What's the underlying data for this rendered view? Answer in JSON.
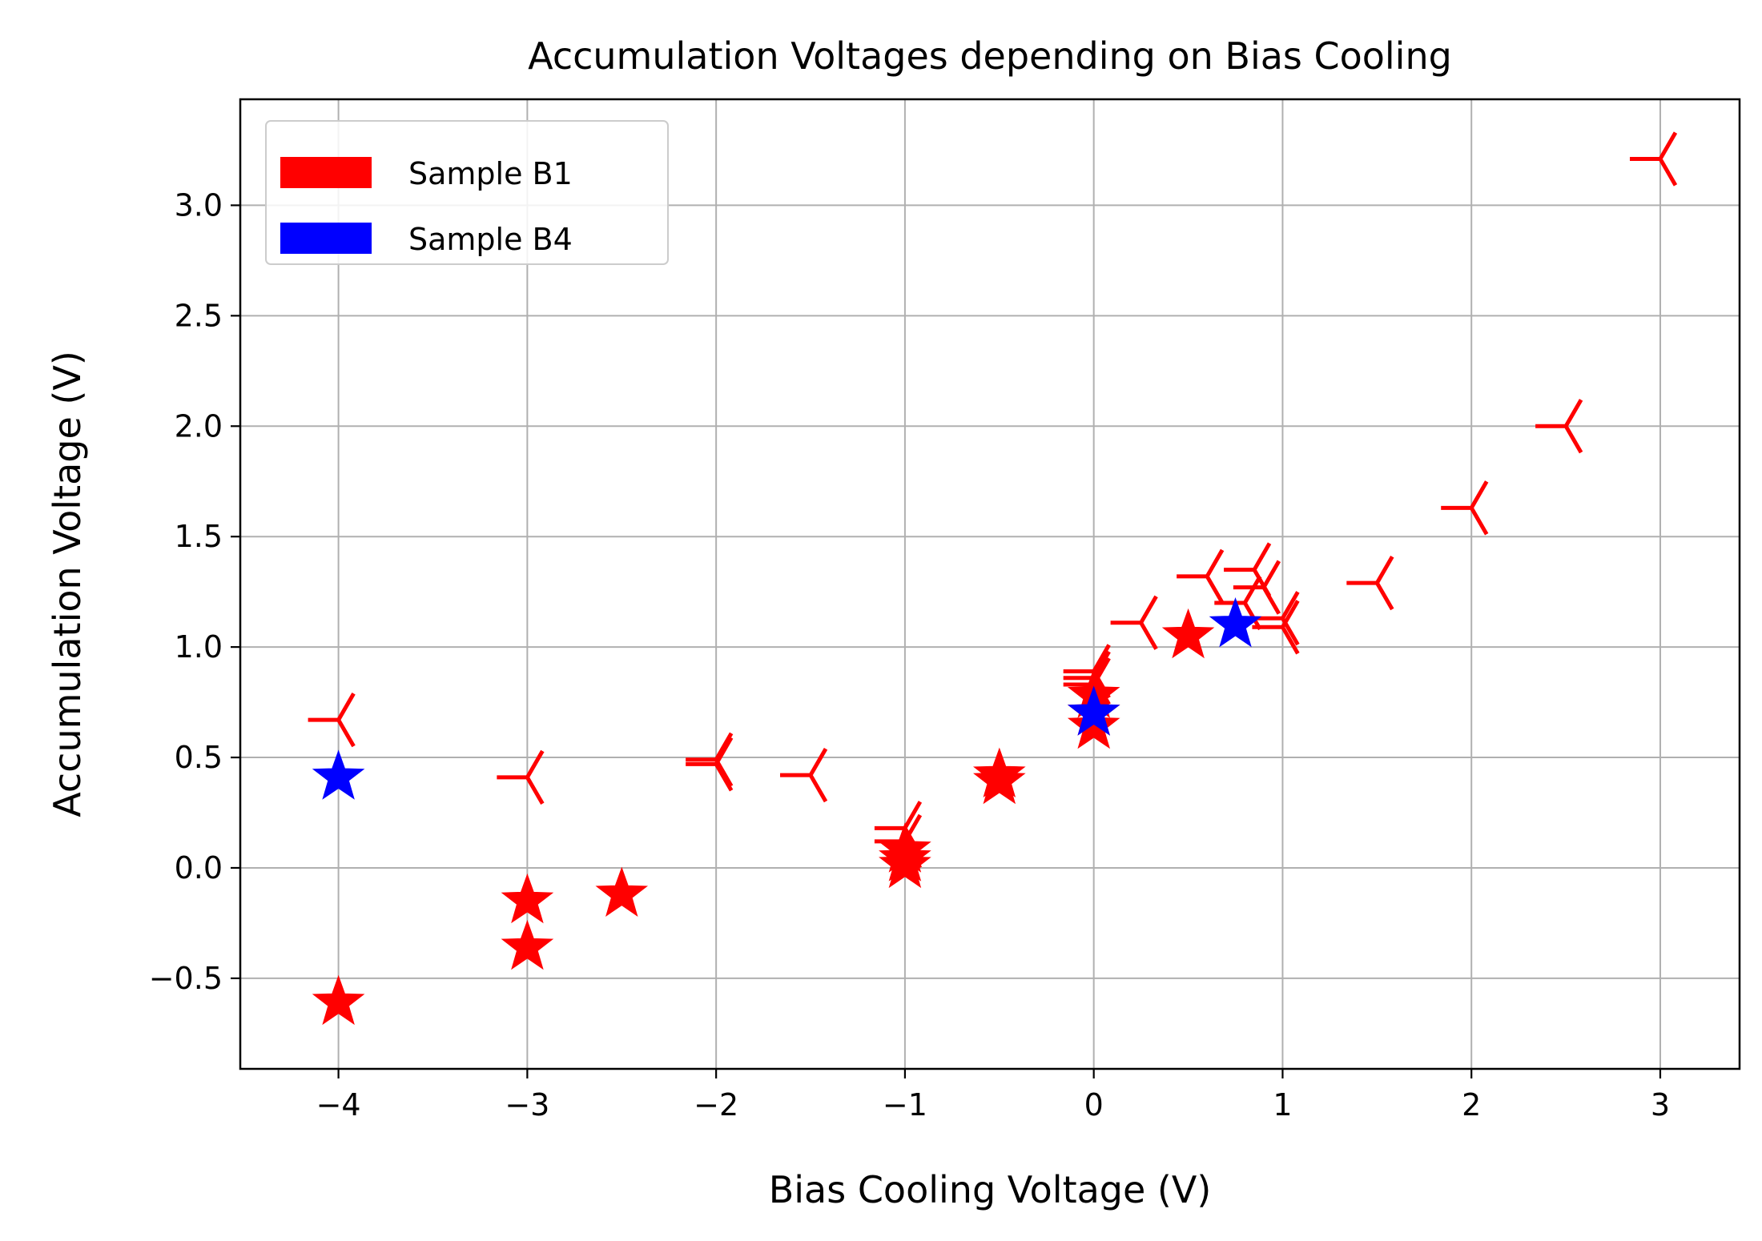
{
  "chart_data": {
    "type": "scatter",
    "title": "Accumulation Voltages depending on Bias Cooling",
    "xlabel": "Bias Cooling Voltage (V)",
    "ylabel": "Accumulation Voltage (V)",
    "xlim": [
      -4.52,
      3.42
    ],
    "ylim": [
      -0.91,
      3.48
    ],
    "grid": true,
    "legend_placement": "upper-left",
    "x_ticks": [
      -4,
      -3,
      -2,
      -1,
      0,
      1,
      2,
      3
    ],
    "x_tick_labels": [
      "−4",
      "−3",
      "−2",
      "−1",
      "0",
      "1",
      "2",
      "3"
    ],
    "y_ticks": [
      -0.5,
      0.0,
      0.5,
      1.0,
      1.5,
      2.0,
      2.5,
      3.0
    ],
    "y_tick_labels": [
      "−0.5",
      "0.0",
      "0.5",
      "1.0",
      "1.5",
      "2.0",
      "2.5",
      "3.0"
    ],
    "legend": [
      {
        "label": "Sample B1",
        "color": "#ff0000"
      },
      {
        "label": "Sample B4",
        "color": "#0000ff"
      }
    ],
    "series": [
      {
        "color": "#ff0000",
        "marker": "tri-left",
        "points": [
          [
            -4.0,
            0.67
          ],
          [
            -3.0,
            0.41
          ],
          [
            -2.0,
            0.49
          ],
          [
            -2.0,
            0.47
          ],
          [
            -1.5,
            0.42
          ],
          [
            -1.0,
            0.18
          ],
          [
            -1.0,
            0.12
          ],
          [
            0.0,
            0.89
          ],
          [
            0.0,
            0.86
          ],
          [
            0.0,
            0.83
          ],
          [
            0.25,
            1.11
          ],
          [
            0.6,
            1.32
          ],
          [
            0.85,
            1.35
          ],
          [
            0.9,
            1.27
          ],
          [
            0.8,
            1.2
          ],
          [
            1.0,
            1.13
          ],
          [
            1.0,
            1.09
          ],
          [
            1.5,
            1.29
          ],
          [
            2.0,
            1.63
          ],
          [
            2.5,
            2.0
          ],
          [
            3.0,
            3.21
          ]
        ]
      },
      {
        "color": "#ff0000",
        "marker": "star",
        "points": [
          [
            -4.0,
            -0.61
          ],
          [
            -3.0,
            -0.15
          ],
          [
            -3.0,
            -0.36
          ],
          [
            -2.5,
            -0.12
          ],
          [
            -1.0,
            0.08
          ],
          [
            -1.0,
            0.04
          ],
          [
            -1.0,
            0.01
          ],
          [
            -0.5,
            0.42
          ],
          [
            -0.5,
            0.39
          ],
          [
            0.0,
            0.78
          ],
          [
            0.0,
            0.7
          ],
          [
            0.0,
            0.64
          ],
          [
            0.5,
            1.05
          ]
        ]
      },
      {
        "color": "#0000ff",
        "marker": "star",
        "points": [
          [
            -4.0,
            0.41
          ],
          [
            0.0,
            0.7
          ],
          [
            0.75,
            1.1
          ]
        ]
      }
    ]
  }
}
